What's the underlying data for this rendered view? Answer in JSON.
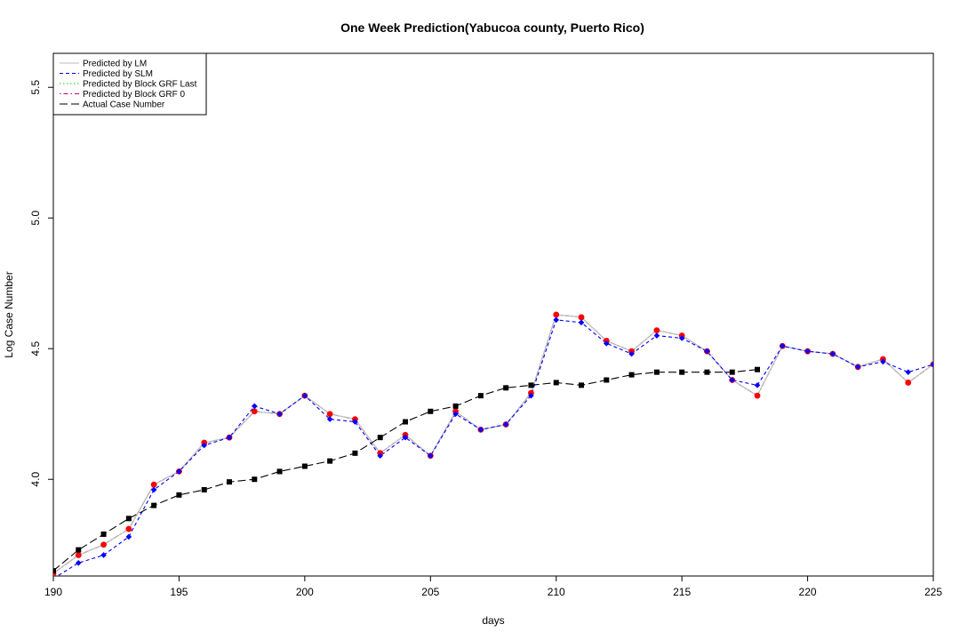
{
  "chart_data": {
    "type": "line",
    "title": "One Week Prediction(Yabucoa county, Puerto Rico)",
    "xlabel": "days",
    "ylabel": "Log Case Number",
    "xlim": [
      190,
      225
    ],
    "ylim": [
      3.63,
      5.63
    ],
    "x_ticks": [
      190,
      195,
      200,
      205,
      210,
      215,
      220,
      225
    ],
    "y_ticks": [
      4.0,
      4.5,
      5.0,
      5.5
    ],
    "y_tick_labels": [
      "4.0",
      "4.5",
      "5.0",
      "5.5"
    ],
    "grid": false,
    "legend_position": "top-left",
    "x": [
      190,
      191,
      192,
      193,
      194,
      195,
      196,
      197,
      198,
      199,
      200,
      201,
      202,
      203,
      204,
      205,
      206,
      207,
      208,
      209,
      210,
      211,
      212,
      213,
      214,
      215,
      216,
      217,
      218,
      219,
      220,
      221,
      222,
      223,
      224,
      225
    ],
    "series": [
      {
        "name": "Predicted by LM",
        "color": "#bbbbbb",
        "line_style": "solid",
        "marker": "none",
        "values": [
          3.64,
          3.71,
          3.75,
          3.81,
          3.98,
          4.03,
          4.14,
          4.16,
          4.26,
          4.25,
          4.32,
          4.25,
          4.23,
          4.1,
          4.17,
          4.09,
          4.26,
          4.19,
          4.21,
          4.33,
          4.63,
          4.62,
          4.53,
          4.49,
          4.57,
          4.55,
          4.49,
          4.38,
          4.32,
          4.51,
          4.49,
          4.48,
          4.43,
          4.46,
          4.37,
          4.44
        ]
      },
      {
        "name": "Predicted by SLM",
        "color": "#0000ff",
        "line_style": "dashed",
        "marker": "diamond",
        "values": [
          3.62,
          3.68,
          3.71,
          3.78,
          3.96,
          4.03,
          4.13,
          4.16,
          4.28,
          4.25,
          4.32,
          4.23,
          4.22,
          4.09,
          4.16,
          4.09,
          4.25,
          4.19,
          4.21,
          4.32,
          4.61,
          4.6,
          4.52,
          4.48,
          4.55,
          4.54,
          4.49,
          4.38,
          4.36,
          4.51,
          4.49,
          4.48,
          4.43,
          4.45,
          4.41,
          4.44
        ]
      },
      {
        "name": "Predicted by Block GRF Last",
        "color": "#00cc00",
        "line_style": "dotted",
        "marker": "none",
        "values": [
          3.64,
          3.71,
          3.75,
          3.81,
          3.98,
          4.03,
          4.14,
          4.16,
          4.26,
          4.25,
          4.32,
          4.25,
          4.23,
          4.1,
          4.17,
          4.09,
          4.26,
          4.19,
          4.21,
          4.33,
          4.63,
          4.62,
          4.53,
          4.49,
          4.57,
          4.55,
          4.49,
          4.38,
          4.32,
          4.51,
          4.49,
          4.48,
          4.43,
          4.46,
          4.37,
          4.44
        ]
      },
      {
        "name": "Predicted by Block GRF 0",
        "color": "#cc0066",
        "line_style": "dotdash",
        "marker": "circle",
        "marker_color": "#ff0000",
        "values": [
          3.64,
          3.71,
          3.75,
          3.81,
          3.98,
          4.03,
          4.14,
          4.16,
          4.26,
          4.25,
          4.32,
          4.25,
          4.23,
          4.1,
          4.17,
          4.09,
          4.26,
          4.19,
          4.21,
          4.33,
          4.63,
          4.62,
          4.53,
          4.49,
          4.57,
          4.55,
          4.49,
          4.38,
          4.32,
          4.51,
          4.49,
          4.48,
          4.43,
          4.46,
          4.37,
          4.44
        ]
      },
      {
        "name": "Actual Case Number",
        "color": "#000000",
        "line_style": "longdash",
        "marker": "square",
        "values": [
          3.65,
          3.73,
          3.79,
          3.85,
          3.9,
          3.94,
          3.96,
          3.99,
          4.0,
          4.03,
          4.05,
          4.07,
          4.1,
          4.16,
          4.22,
          4.26,
          4.28,
          4.32,
          4.35,
          4.36,
          4.37,
          4.36,
          4.38,
          4.4,
          4.41,
          4.41,
          4.41,
          4.41,
          4.42,
          null,
          null,
          null,
          null,
          null,
          null,
          null
        ]
      }
    ]
  }
}
